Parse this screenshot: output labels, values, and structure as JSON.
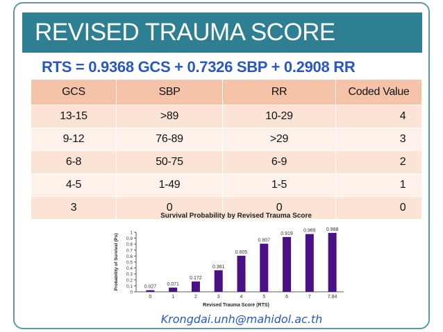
{
  "slide": {
    "title": "REVISED TRAUMA SCORE",
    "formula": "RTS = 0.9368 GCS + 0.7326 SBP + 0.2908 RR",
    "footer": "Krongdai.unh@mahidol.ac.th",
    "colors": {
      "title_bg": "#2f7f93",
      "accent": "#2a57c8",
      "table_header": "#f4c3a8",
      "bar": "#4b1184"
    }
  },
  "table": {
    "headers": [
      "GCS",
      "SBP",
      "RR",
      "Coded Value"
    ],
    "rows": [
      [
        "13-15",
        ">89",
        "10-29",
        "4"
      ],
      [
        "9-12",
        "76-89",
        ">29",
        "3"
      ],
      [
        "6-8",
        "50-75",
        "6-9",
        "2"
      ],
      [
        "4-5",
        "1-49",
        "1-5",
        "1"
      ],
      [
        "3",
        "0",
        "0",
        "0"
      ]
    ]
  },
  "chart_data": {
    "type": "bar",
    "title": "Survival Probability by Revised Trauma Score",
    "xlabel": "Revised Trauma Score (RTS)",
    "ylabel": "Probability of Survival (Ps)",
    "categories": [
      "0",
      "1",
      "2",
      "3",
      "4",
      "5",
      "6",
      "7",
      "7.84"
    ],
    "values": [
      0.027,
      0.071,
      0.172,
      0.361,
      0.605,
      0.807,
      0.919,
      0.969,
      0.988
    ],
    "value_labels": [
      "0.027",
      "0.071",
      "0.172",
      "0.361",
      "0.605",
      "0.807",
      "0.919",
      "0.969",
      "0.988"
    ],
    "ylim": [
      0,
      1
    ],
    "yticks": [
      "0",
      "0.1",
      "0.2",
      "0.3",
      "0.4",
      "0.5",
      "0.6",
      "0.7",
      "0.8",
      "0.9",
      "1"
    ],
    "grid": false,
    "bar_color": "#4b1184"
  }
}
